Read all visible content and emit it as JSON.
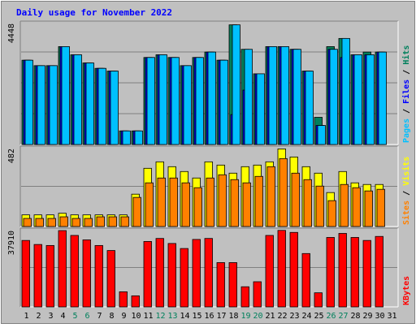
{
  "chart_data": {
    "type": "bar",
    "title": "Daily usage for November 2022",
    "days": [
      "1",
      "2",
      "3",
      "4",
      "5",
      "6",
      "7",
      "8",
      "9",
      "10",
      "11",
      "12",
      "13",
      "14",
      "15",
      "16",
      "17",
      "18",
      "19",
      "20",
      "21",
      "22",
      "23",
      "24",
      "25",
      "26",
      "27",
      "28",
      "29",
      "30",
      "31"
    ],
    "weekend_days": [
      "5",
      "6",
      "12",
      "13",
      "19",
      "20",
      "26",
      "27"
    ],
    "colors": {
      "hits": "#00805c",
      "files": "#0000ff",
      "pages": "#00c0ff",
      "visits": "#ffff00",
      "sites": "#ff8000",
      "kbytes": "#ff0000",
      "title": "#0000ff",
      "weekend_label": "#00805c",
      "weekday_label": "#000000",
      "panel_bg": "#c0c0c0"
    },
    "panels": [
      {
        "id": "hits-files-pages",
        "max_label": "4448",
        "ymax": 4448,
        "legend": [
          {
            "label": "Pages",
            "color": "#00c0ff"
          },
          {
            "label": "Files",
            "color": "#0000ff"
          },
          {
            "label": "Hits",
            "color": "#00805c"
          }
        ],
        "series": [
          {
            "name": "Hits",
            "color": "#00805c",
            "values": [
              3100,
              2900,
              2900,
              3600,
              3300,
              3000,
              2800,
              2700,
              500,
              500,
              3200,
              3300,
              3200,
              2900,
              3200,
              3400,
              3100,
              4400,
              3500,
              2600,
              3600,
              3600,
              3500,
              2700,
              1000,
              3600,
              3900,
              3300,
              3400,
              3400,
              null
            ]
          },
          {
            "name": "Files",
            "color": "#0000ff",
            "values": [
              3100,
              2900,
              2900,
              3600,
              3300,
              3000,
              2800,
              2700,
              500,
              500,
              3200,
              3300,
              3200,
              2900,
              3200,
              3400,
              3100,
              1100,
              2000,
              2600,
              3600,
              3600,
              3500,
              2700,
              700,
              3500,
              3200,
              3300,
              3300,
              3400,
              null
            ]
          },
          {
            "name": "Pages",
            "color": "#00c0ff",
            "values": [
              3100,
              2900,
              2900,
              3600,
              3300,
              3000,
              2800,
              2700,
              500,
              500,
              3200,
              3300,
              3200,
              2900,
              3200,
              3400,
              3100,
              4400,
              3500,
              2600,
              3600,
              3600,
              3500,
              2700,
              700,
              3500,
              3900,
              3300,
              3300,
              3400,
              null
            ]
          }
        ]
      },
      {
        "id": "visits-sites",
        "max_label": "482",
        "ymax": 482,
        "legend": [
          {
            "label": "Sites",
            "color": "#ff8000"
          },
          {
            "label": "Visits",
            "color": "#ffff00"
          }
        ],
        "series": [
          {
            "name": "Visits",
            "color": "#ffff00",
            "values": [
              72,
              72,
              72,
              82,
              72,
              72,
              72,
              72,
              72,
              200,
              360,
              400,
              370,
              340,
              300,
              400,
              380,
              330,
              370,
              380,
              400,
              480,
              430,
              370,
              330,
              210,
              340,
              270,
              260,
              260,
              null
            ]
          },
          {
            "name": "Sites",
            "color": "#ff8000",
            "values": [
              50,
              50,
              50,
              60,
              50,
              50,
              60,
              60,
              60,
              180,
              270,
              300,
              300,
              270,
              240,
              300,
              320,
              290,
              270,
              310,
              370,
              420,
              330,
              290,
              250,
              160,
              260,
              240,
              220,
              230,
              null
            ]
          }
        ]
      },
      {
        "id": "kbytes",
        "max_label": "37910",
        "ymax": 37910,
        "legend": [
          {
            "label": "KBytes",
            "color": "#ff0000"
          }
        ],
        "series": [
          {
            "name": "KBytes",
            "color": "#ff0000",
            "values": [
              33000,
              31000,
              30500,
              37900,
              35500,
              33300,
              30500,
              28000,
              7500,
              5500,
              32500,
              34000,
              31500,
              29000,
              33500,
              34000,
              22000,
              22000,
              10000,
              12500,
              35500,
              38000,
              37000,
              26500,
              7000,
              34500,
              36500,
              34500,
              33000,
              35000,
              null
            ]
          }
        ]
      }
    ]
  }
}
